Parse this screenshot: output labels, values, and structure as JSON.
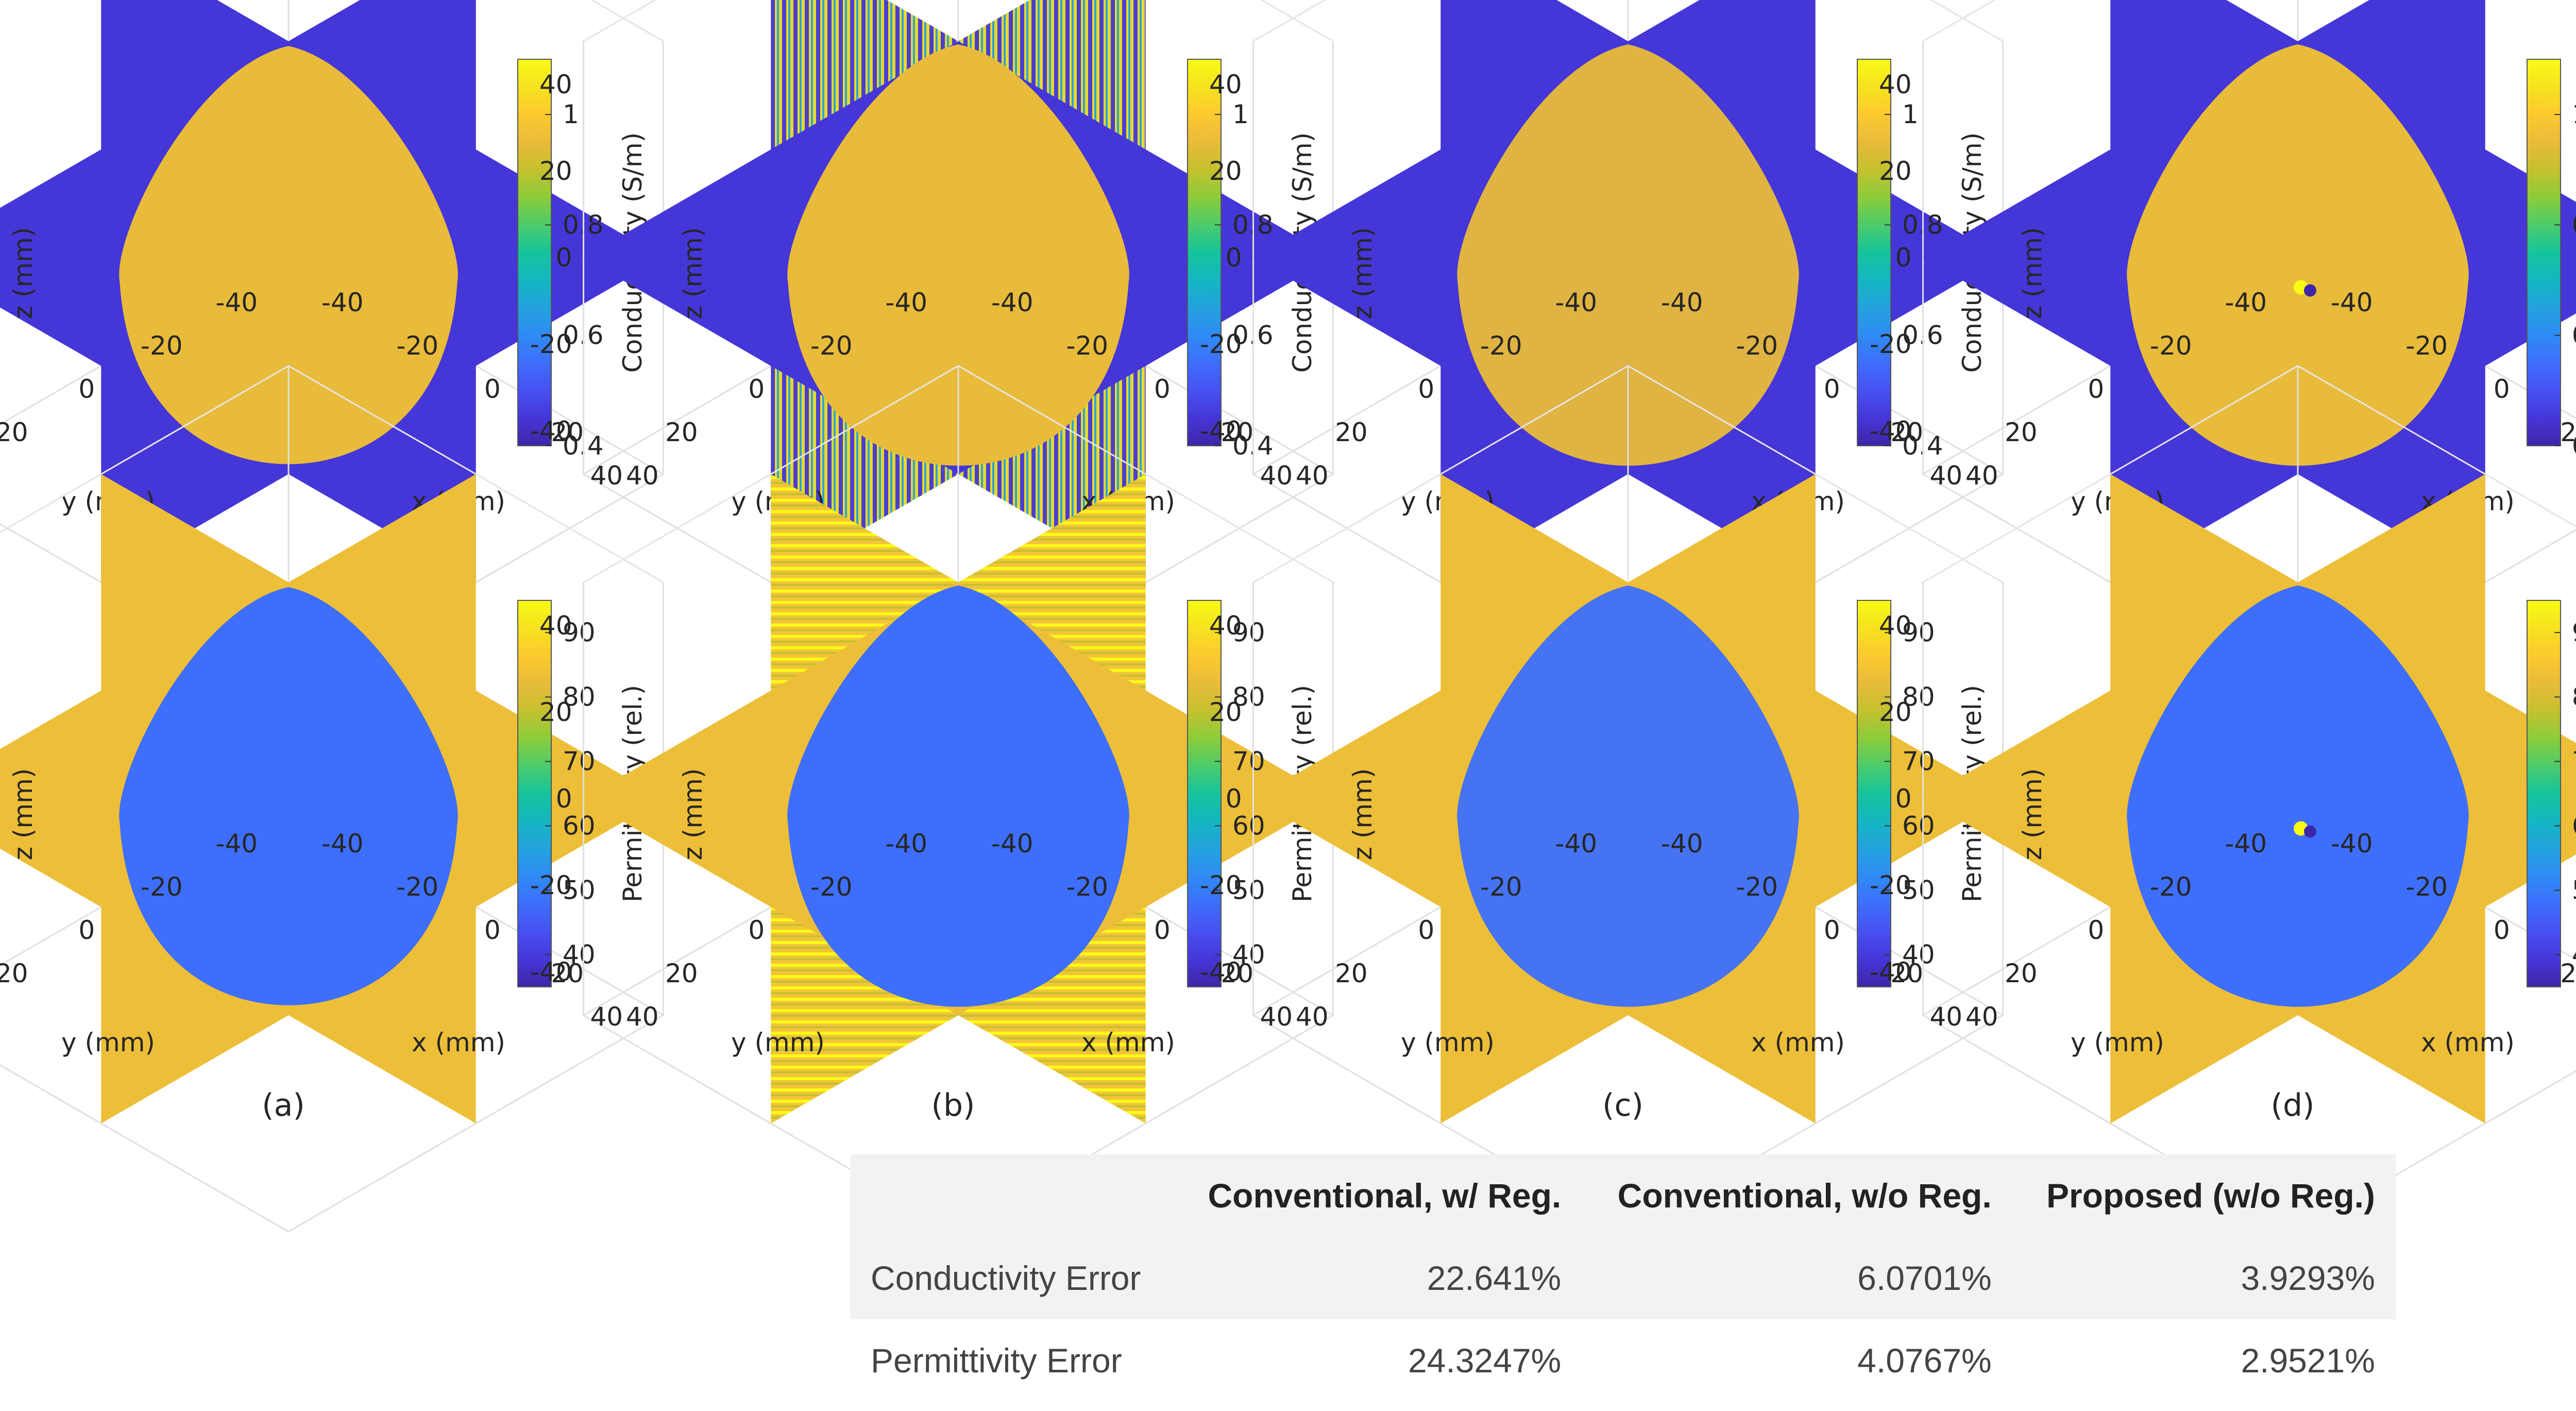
{
  "chart_data": {
    "type": "figure",
    "panels": [
      "(a)",
      "(b)",
      "(c)",
      "(d)"
    ],
    "rows": [
      {
        "quantity": "Conductivity",
        "colorbar_label": "Conductivity (S/m)",
        "colorbar_ticks": [
          "0.4",
          "0.6",
          "0.8",
          "1"
        ],
        "clim": [
          0.4,
          1.1
        ],
        "background_value": 0.45,
        "inclusion_value": 0.95
      },
      {
        "quantity": "Permittivity",
        "colorbar_label": "Permittivity (rel.)",
        "colorbar_ticks": [
          "40",
          "50",
          "60",
          "70",
          "80",
          "90"
        ],
        "clim": [
          35,
          95
        ],
        "background_value": 83,
        "inclusion_value": 48
      }
    ],
    "axes": {
      "x_label": "x (mm)",
      "y_label": "y (mm)",
      "z_label": "z (mm)",
      "x_ticks": [
        "-40",
        "-20",
        "0",
        "20",
        "40"
      ],
      "y_ticks": [
        "40",
        "20",
        "0",
        "-20",
        "-40"
      ],
      "z_ticks": [
        "40",
        "20",
        "0",
        "-20",
        "-40"
      ]
    },
    "colormap": [
      "#3e26a8",
      "#4536d8",
      "#4751f3",
      "#3e6efc",
      "#2f8bf4",
      "#24a2de",
      "#14b6c2",
      "#15c49c",
      "#4ccb6b",
      "#8ccc3a",
      "#c5c12e",
      "#e9bb3a",
      "#fcca2e",
      "#f6e21f",
      "#f9fb15"
    ],
    "table": {
      "columns": [
        "Conventional, w/ Reg.",
        "Conventional, w/o Reg.",
        "Proposed (w/o Reg.)"
      ],
      "rows": [
        {
          "name": "Conductivity Error",
          "values": [
            "22.641%",
            "6.0701%",
            "3.9293%"
          ]
        },
        {
          "name": "Permittivity Error",
          "values": [
            "24.3247%",
            "4.0767%",
            "2.9521%"
          ]
        }
      ]
    }
  }
}
